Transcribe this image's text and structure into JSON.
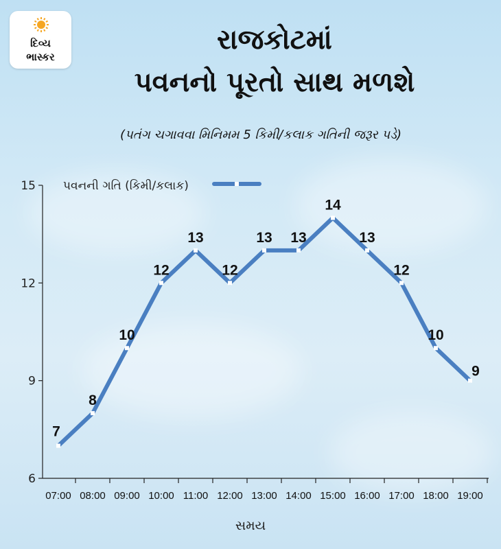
{
  "brand": {
    "line1": "દિવ્ય",
    "line2": "ભાસ્કર",
    "logo_icon": "sun-icon",
    "sun_color": "#f5a623"
  },
  "headline": {
    "line1": "રાજકોટમાં",
    "line2": "પવનનો પૂરતો સાથ મળશે"
  },
  "subtitle": "(પતંગ ચગાવવા મિનિમમ 5 કિમી/કલાક ગતિની જરૂર પડે)",
  "chart_data": {
    "type": "line",
    "categories": [
      "07:00",
      "08:00",
      "09:00",
      "10:00",
      "11:00",
      "12:00",
      "13:00",
      "14:00",
      "15:00",
      "16:00",
      "17:00",
      "18:00",
      "19:00"
    ],
    "series": [
      {
        "name": "પવનની ગતિ (કિમી/કલાક)",
        "values": [
          7,
          8,
          10,
          12,
          13,
          12,
          13,
          13,
          14,
          13,
          12,
          10,
          9
        ],
        "color": "#4a7fc1"
      }
    ],
    "xlabel": "સમય",
    "ylabel": "",
    "ylim": [
      6,
      15
    ],
    "yticks": [
      6,
      9,
      12,
      15
    ],
    "grid": false,
    "data_labels": true,
    "legend": "top-left"
  }
}
